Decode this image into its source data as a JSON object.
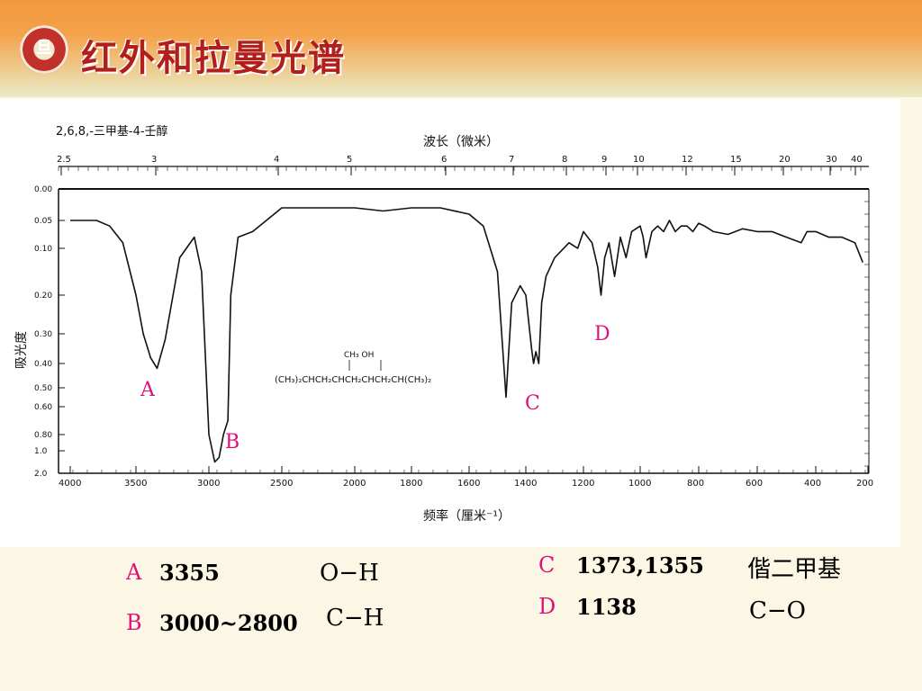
{
  "slide": {
    "title": "红外和拉曼光谱"
  },
  "chart_data": {
    "type": "line",
    "title": "2,6,8,-三甲基-4-壬醇",
    "top_axis_label": "波长（微米）",
    "top_ticks": [
      "2.5",
      "3",
      "4",
      "5",
      "6",
      "7",
      "8",
      "9",
      "10",
      "12",
      "15",
      "20",
      "30",
      "40"
    ],
    "bottom_axis_label": "频率（厘米⁻¹）",
    "bottom_ticks": [
      "4000",
      "3500",
      "3000",
      "2500",
      "2000",
      "1800",
      "1600",
      "1400",
      "1200",
      "1000",
      "800",
      "600",
      "400",
      "200"
    ],
    "ylabel": "吸光度",
    "y_ticks": [
      "0.00",
      "0.05",
      "0.10",
      "0.20",
      "0.30",
      "0.40",
      "0.50",
      "0.60",
      "0.80",
      "1.0",
      "2.0"
    ],
    "x": [
      4000,
      3800,
      3700,
      3600,
      3500,
      3450,
      3400,
      3355,
      3300,
      3200,
      3100,
      3050,
      3000,
      2960,
      2930,
      2900,
      2870,
      2850,
      2800,
      2700,
      2500,
      2200,
      2000,
      1900,
      1800,
      1700,
      1600,
      1550,
      1500,
      1470,
      1450,
      1420,
      1400,
      1380,
      1373,
      1365,
      1355,
      1345,
      1330,
      1300,
      1250,
      1220,
      1200,
      1170,
      1150,
      1138,
      1125,
      1110,
      1090,
      1070,
      1050,
      1030,
      1000,
      990,
      980,
      960,
      940,
      920,
      900,
      880,
      860,
      840,
      820,
      800,
      780,
      750,
      700,
      650,
      600,
      550,
      500,
      450,
      430,
      400,
      350,
      300,
      250,
      220
    ],
    "y": [
      0.05,
      0.05,
      0.06,
      0.09,
      0.2,
      0.3,
      0.38,
      0.42,
      0.32,
      0.12,
      0.08,
      0.15,
      0.8,
      1.5,
      1.3,
      0.8,
      0.7,
      0.2,
      0.08,
      0.07,
      0.03,
      0.03,
      0.03,
      0.035,
      0.03,
      0.03,
      0.04,
      0.06,
      0.15,
      0.55,
      0.22,
      0.18,
      0.2,
      0.35,
      0.4,
      0.36,
      0.4,
      0.22,
      0.16,
      0.12,
      0.09,
      0.1,
      0.07,
      0.09,
      0.14,
      0.2,
      0.12,
      0.09,
      0.16,
      0.08,
      0.12,
      0.07,
      0.06,
      0.08,
      0.12,
      0.07,
      0.06,
      0.07,
      0.05,
      0.07,
      0.06,
      0.06,
      0.07,
      0.055,
      0.06,
      0.07,
      0.075,
      0.065,
      0.07,
      0.07,
      0.08,
      0.09,
      0.07,
      0.07,
      0.08,
      0.08,
      0.09,
      0.13
    ],
    "structure_formula_lines": [
      "CH₃      OH",
      "(CH₃)₂CHCH₂CHCH₂CHCH₂CH(CH₃)₂"
    ],
    "annotations": [
      {
        "label": "A",
        "wavenumber": 3355
      },
      {
        "label": "B",
        "wavenumber": 2930
      },
      {
        "label": "C",
        "wavenumber": 1373
      },
      {
        "label": "D",
        "wavenumber": 1138
      }
    ]
  },
  "assignments": {
    "A": {
      "letter": "A",
      "wavenumber": "3355",
      "group": "O−H"
    },
    "B": {
      "letter": "B",
      "wavenumber": "3000~2800",
      "group": "C−H"
    },
    "C": {
      "letter": "C",
      "wavenumber": "1373,1355",
      "group": "偕二甲基"
    },
    "D": {
      "letter": "D",
      "wavenumber": "1138",
      "group": "C−O"
    }
  },
  "colors": {
    "header": "#F4A24A",
    "title": "#B21E1A",
    "accent": "#E0117A",
    "background": "#FBF7E4"
  }
}
